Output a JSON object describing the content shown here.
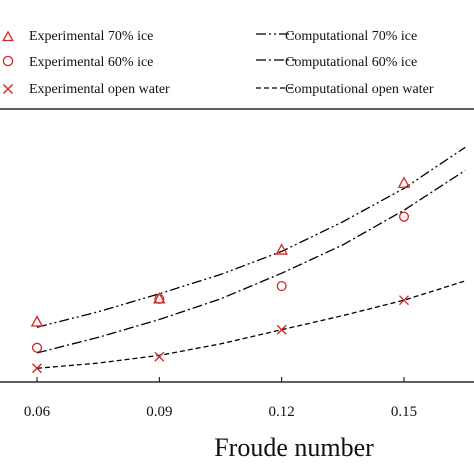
{
  "chart_data": {
    "type": "line",
    "title": "",
    "xlabel": "Froude number",
    "ylabel": "",
    "xlim": [
      0.05,
      0.165
    ],
    "ylim": [
      0,
      10
    ],
    "xticks": [
      0.06,
      0.09,
      0.12,
      0.15
    ],
    "xtick_labels": [
      "0.06",
      "0.09",
      "0.12",
      "0.15"
    ],
    "grid": false,
    "legend": {
      "placement": "top",
      "entries": [
        "Experimental 70% ice",
        "Computational 70% ice",
        "Experimental 60% ice",
        "Computational 60% ice",
        "Experimental open water",
        "Computational open water"
      ]
    },
    "series": [
      {
        "name": "Experimental 70% ice",
        "kind": "markers",
        "marker": "triangle",
        "color": "#d62728",
        "x": [
          0.06,
          0.09,
          0.12,
          0.15
        ],
        "y": [
          2.1,
          3.0,
          4.9,
          7.5
        ]
      },
      {
        "name": "Experimental 60% ice",
        "kind": "markers",
        "marker": "circle",
        "color": "#d62728",
        "x": [
          0.06,
          0.09,
          0.12,
          0.15
        ],
        "y": [
          1.1,
          3.0,
          3.5,
          6.2
        ]
      },
      {
        "name": "Experimental open water",
        "kind": "markers",
        "marker": "cross",
        "color": "#d62728",
        "x": [
          0.06,
          0.09,
          0.12,
          0.15
        ],
        "y": [
          0.3,
          0.75,
          1.8,
          2.95
        ]
      },
      {
        "name": "Computational 70% ice",
        "kind": "line",
        "dash": "dash-dot-dot",
        "color": "#000000",
        "x": [
          0.06,
          0.075,
          0.09,
          0.105,
          0.12,
          0.135,
          0.15,
          0.165
        ],
        "y": [
          1.9,
          2.5,
          3.2,
          3.95,
          4.85,
          6.0,
          7.3,
          8.9
        ]
      },
      {
        "name": "Computational 60% ice",
        "kind": "line",
        "dash": "dash-dot",
        "color": "#000000",
        "x": [
          0.06,
          0.075,
          0.09,
          0.105,
          0.12,
          0.135,
          0.15,
          0.165
        ],
        "y": [
          0.9,
          1.5,
          2.2,
          3.0,
          4.0,
          5.1,
          6.45,
          8.0
        ]
      },
      {
        "name": "Computational open water",
        "kind": "line",
        "dash": "dashed",
        "color": "#000000",
        "x": [
          0.06,
          0.075,
          0.09,
          0.105,
          0.12,
          0.135,
          0.15,
          0.165
        ],
        "y": [
          0.3,
          0.5,
          0.8,
          1.25,
          1.8,
          2.35,
          2.95,
          3.7
        ]
      }
    ]
  }
}
